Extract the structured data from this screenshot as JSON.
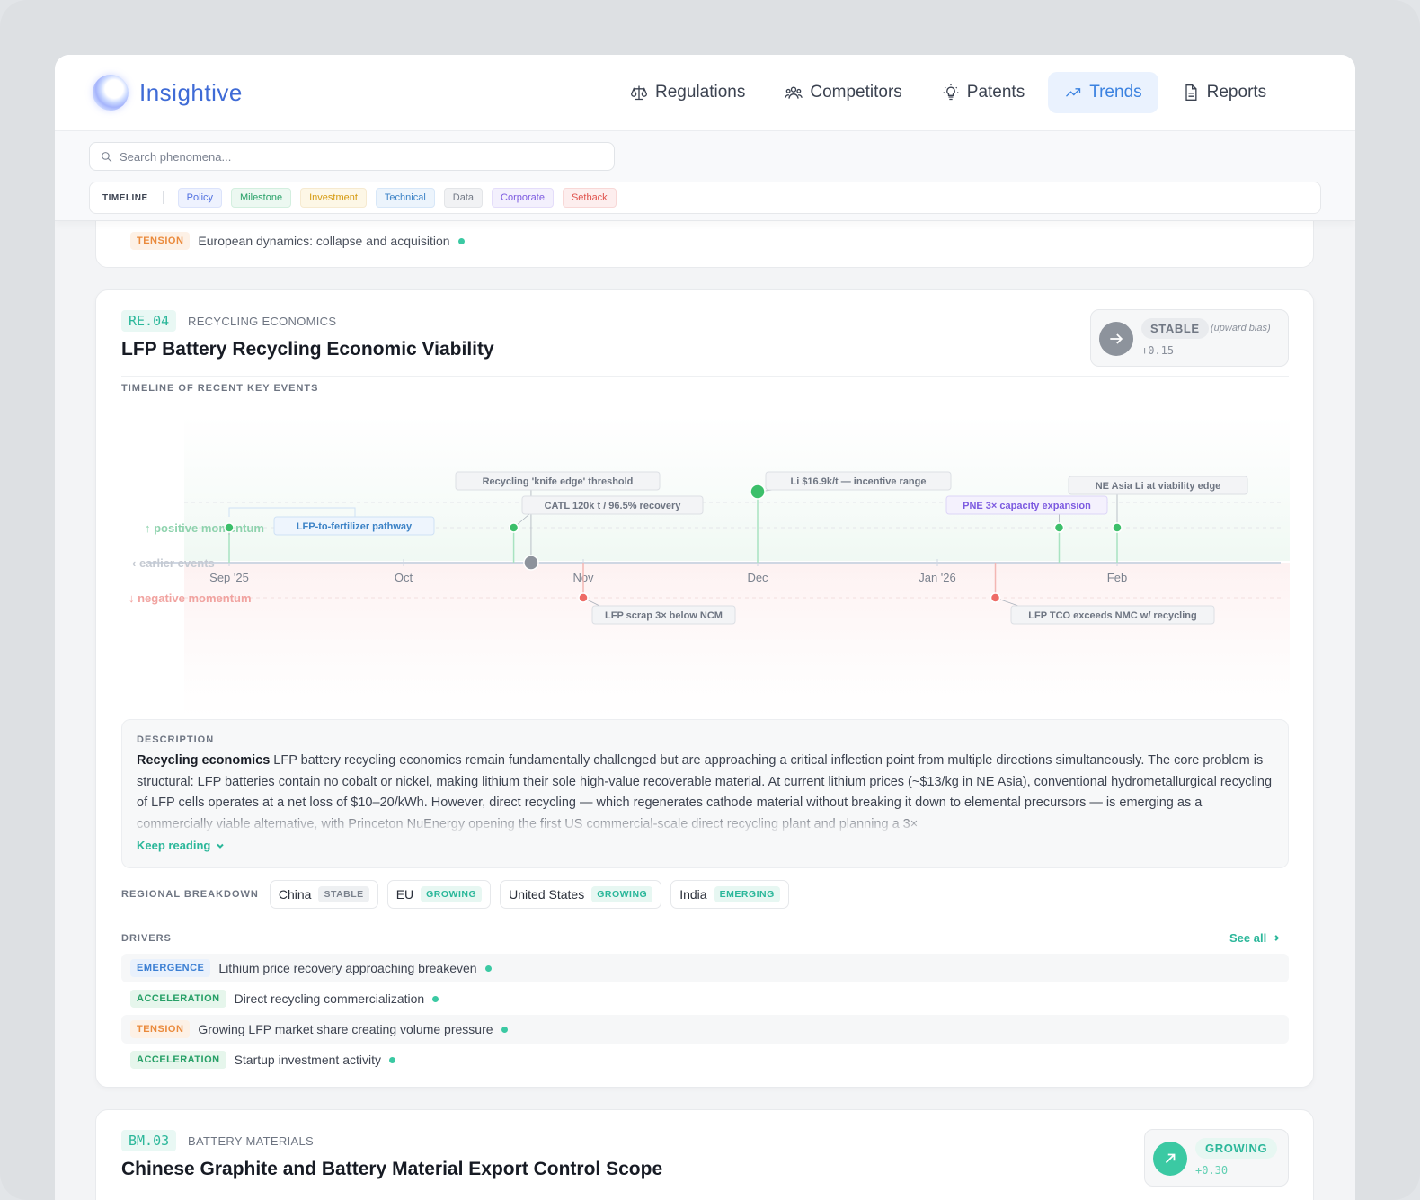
{
  "brand": {
    "name": "Insightive"
  },
  "nav": [
    {
      "label": "Regulations",
      "icon": "scale-icon",
      "active": false
    },
    {
      "label": "Competitors",
      "icon": "users-icon",
      "active": false
    },
    {
      "label": "Patents",
      "icon": "lightbulb-icon",
      "active": false
    },
    {
      "label": "Trends",
      "icon": "trending-up-icon",
      "active": true
    },
    {
      "label": "Reports",
      "icon": "document-icon",
      "active": false
    }
  ],
  "search": {
    "placeholder": "Search phenomena..."
  },
  "legend": {
    "title": "TIMELINE",
    "chips": [
      "Policy",
      "Milestone",
      "Investment",
      "Technical",
      "Data",
      "Corporate",
      "Setback"
    ]
  },
  "prev_card": {
    "tag": "TENSION",
    "text": "European dynamics: collapse and acquisition"
  },
  "card": {
    "code": "RE.04",
    "category": "RECYCLING ECONOMICS",
    "title": "LFP Battery Recycling Economic Viability",
    "status": {
      "label": "STABLE",
      "bias": "(upward bias)",
      "delta": "+0.15",
      "icon": "arrow-right-icon"
    },
    "timeline_label": "TIMELINE OF RECENT KEY EVENTS",
    "description": {
      "label": "DESCRIPTION",
      "lead": "Recycling economics",
      "body": " LFP battery recycling economics remain fundamentally challenged but are approaching a critical inflection point from multiple directions simultaneously. The core problem is structural: LFP batteries contain no cobalt or nickel, making lithium their sole high-value recoverable material. At current lithium prices (~$13/kg in NE Asia), conventional hydrometallurgical recycling of LFP cells operates at a net loss of $10–20/kWh. However, direct recycling — which regenerates cathode material without breaking it down to elemental precursors — is emerging as a commercially viable alternative, with Princeton NuEnergy opening the first US commercial-scale direct recycling plant and planning a 3×",
      "keep_reading": "Keep reading"
    },
    "regional": {
      "label": "REGIONAL BREAKDOWN",
      "items": [
        {
          "region": "China",
          "status": "STABLE"
        },
        {
          "region": "EU",
          "status": "GROWING"
        },
        {
          "region": "United States",
          "status": "GROWING"
        },
        {
          "region": "India",
          "status": "EMERGING"
        }
      ]
    },
    "drivers": {
      "label": "DRIVERS",
      "see_all": "See all",
      "items": [
        {
          "tag": "EMERGENCE",
          "text": "Lithium price recovery approaching breakeven"
        },
        {
          "tag": "ACCELERATION",
          "text": "Direct recycling commercialization"
        },
        {
          "tag": "TENSION",
          "text": "Growing LFP market share creating volume pressure"
        },
        {
          "tag": "ACCELERATION",
          "text": "Startup investment activity"
        }
      ]
    }
  },
  "chart_data": {
    "type": "scatter",
    "x_ticks": [
      "Sep '25",
      "Oct",
      "Nov",
      "Dec",
      "Jan '26",
      "Feb"
    ],
    "lane_labels": {
      "positive": "positive momentum",
      "negative": "negative momentum",
      "earlier": "earlier events"
    },
    "events": [
      {
        "date": "2025-09-01",
        "momentum": "positive",
        "label": "LFP-to-fertilizer pathway",
        "category": "Technical"
      },
      {
        "date": "2025-10-23",
        "momentum": "neutral",
        "label": "Recycling 'knife edge' threshold",
        "category": "Data"
      },
      {
        "date": "2025-10-20",
        "momentum": "positive",
        "label": "CATL 120k t / 96.5% recovery",
        "category": "Data"
      },
      {
        "date": "2025-11-01",
        "momentum": "negative",
        "label": "LFP scrap 3× below NCM",
        "category": "Data"
      },
      {
        "date": "2025-12-01",
        "momentum": "positive",
        "label": "Li $16.9k/t — incentive range",
        "category": "Data"
      },
      {
        "date": "2026-01-11",
        "momentum": "negative",
        "label": "LFP TCO exceeds NMC w/ recycling",
        "category": "Data"
      },
      {
        "date": "2026-01-22",
        "momentum": "positive",
        "label": "PNE 3× capacity expansion",
        "category": "Corporate"
      },
      {
        "date": "2026-02-01",
        "momentum": "positive",
        "label": "NE Asia Li at viability edge",
        "category": "Data"
      }
    ]
  },
  "next_card": {
    "code": "BM.03",
    "category": "BATTERY MATERIALS",
    "title": "Chinese Graphite and Battery Material Export Control Scope",
    "status": {
      "label": "GROWING",
      "delta": "+0.30",
      "icon": "arrow-up-right-icon"
    }
  }
}
